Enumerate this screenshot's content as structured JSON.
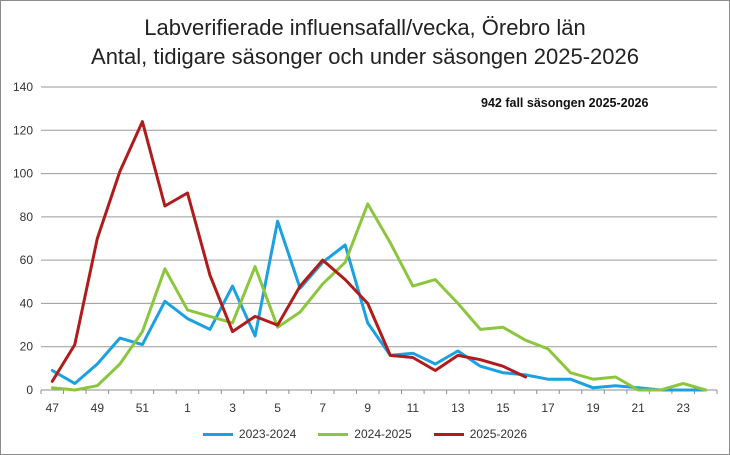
{
  "chart_data": {
    "type": "line",
    "title": [
      "Labverifierade influensafall/vecka, Örebro län",
      "Antal, tidigare säsonger och under säsongen 2025-2026"
    ],
    "annotation": "942 fall säsongen 2025-2026",
    "xlabel": "",
    "ylabel": "",
    "ylim": [
      0,
      140
    ],
    "yticks": [
      0,
      20,
      40,
      60,
      80,
      100,
      120,
      140
    ],
    "categories": [
      "47",
      "48",
      "49",
      "50",
      "51",
      "52",
      "1",
      "2",
      "3",
      "4",
      "5",
      "6",
      "7",
      "8",
      "9",
      "10",
      "11",
      "12",
      "13",
      "14",
      "15",
      "16",
      "17",
      "18",
      "19",
      "20",
      "21",
      "22",
      "23",
      "24"
    ],
    "xtick_labels": [
      "47",
      "",
      "49",
      "",
      "51",
      "",
      "1",
      "",
      "3",
      "",
      "5",
      "",
      "7",
      "",
      "9",
      "",
      "11",
      "",
      "13",
      "",
      "15",
      "",
      "17",
      "",
      "19",
      "",
      "21",
      "",
      "23",
      ""
    ],
    "grid": "horizontal",
    "legend_position": "bottom",
    "series": [
      {
        "name": "2023-2024",
        "color": "#1ba1e2",
        "values": [
          9,
          3,
          12,
          24,
          21,
          41,
          33,
          28,
          48,
          25,
          78,
          47,
          59,
          67,
          31,
          16,
          17,
          12,
          18,
          11,
          8,
          7,
          5,
          5,
          1,
          2,
          1,
          0,
          0,
          0
        ]
      },
      {
        "name": "2024-2025",
        "color": "#8cc63f",
        "values": [
          1,
          0,
          2,
          12,
          27,
          56,
          37,
          34,
          31,
          57,
          29,
          36,
          49,
          59,
          86,
          68,
          48,
          51,
          40,
          28,
          29,
          23,
          19,
          8,
          5,
          6,
          0,
          0,
          3,
          0
        ]
      },
      {
        "name": "2025-2026",
        "color": "#b01c1c",
        "values": [
          4,
          21,
          70,
          101,
          124,
          85,
          91,
          53,
          27,
          34,
          30,
          48,
          60,
          51,
          40,
          16,
          15,
          9,
          16,
          14,
          11,
          6,
          null,
          null,
          null,
          null,
          null,
          null,
          null,
          null
        ]
      }
    ]
  }
}
